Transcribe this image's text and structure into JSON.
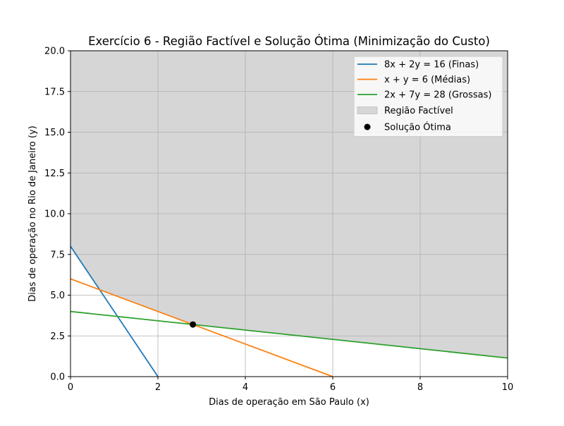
{
  "chart_data": {
    "type": "line",
    "title": "Exercício 6 - Região Factível e Solução Ótima (Minimização do Custo)",
    "xlabel": "Dias de operação em São Paulo (x)",
    "ylabel": "Dias de operação no Rio de Janeiro (y)",
    "xlim": [
      0,
      10
    ],
    "ylim": [
      0,
      20
    ],
    "xticks": [
      0,
      2,
      4,
      6,
      8,
      10
    ],
    "xtick_labels": [
      "0",
      "2",
      "4",
      "6",
      "8",
      "10"
    ],
    "yticks": [
      0,
      2.5,
      5,
      7.5,
      10,
      12.5,
      15,
      17.5,
      20
    ],
    "ytick_labels": [
      "0.0",
      "2.5",
      "5.0",
      "7.5",
      "10.0",
      "12.5",
      "15.0",
      "17.5",
      "20.0"
    ],
    "grid": true,
    "legend_position": "top-right",
    "series": [
      {
        "name": "8x + 2y = 16 (Finas)",
        "color": "#1f77b4",
        "x": [
          0,
          2
        ],
        "y": [
          8,
          0
        ]
      },
      {
        "name": "x + y = 6 (Médias)",
        "color": "#ff7f0e",
        "x": [
          0,
          6
        ],
        "y": [
          6,
          0
        ]
      },
      {
        "name": "2x + 7y = 28 (Grossas)",
        "color": "#2ca02c",
        "x": [
          0,
          10
        ],
        "y": [
          4,
          1.143
        ]
      }
    ],
    "feasible_region": {
      "name": "Região Factível",
      "color": "#d6d6d6",
      "boundary": [
        [
          0,
          20
        ],
        [
          0,
          8
        ],
        [
          0.667,
          5.333
        ],
        [
          2.8,
          3.2
        ],
        [
          10,
          1.143
        ],
        [
          10,
          20
        ]
      ]
    },
    "optimal_point": {
      "name": "Solução Ótima",
      "color": "#000000",
      "x": 2.8,
      "y": 3.2
    }
  }
}
